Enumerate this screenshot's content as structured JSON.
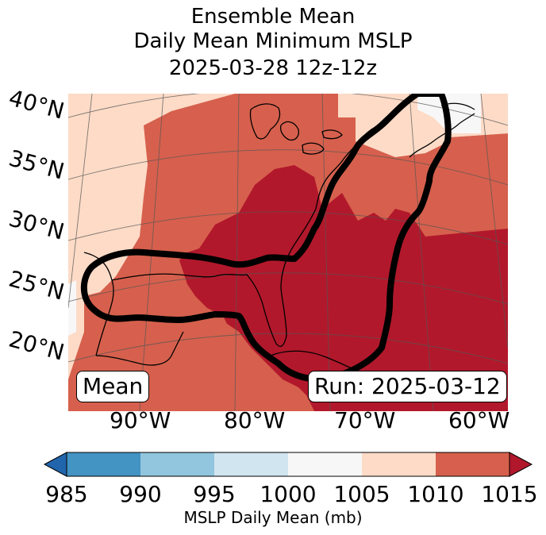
{
  "title": {
    "line1": "Ensemble Mean",
    "line2": "Daily Mean Minimum MSLP",
    "line3": "2025-03-28 12z-12z"
  },
  "map": {
    "lat_labels": [
      "40°N",
      "35°N",
      "30°N",
      "25°N",
      "20°N"
    ],
    "lon_labels": [
      "90°W",
      "80°W",
      "70°W",
      "60°W"
    ],
    "left_box": "Mean",
    "right_box": "Run: 2025-03-12",
    "fill_colors": {
      "lt_1000": "#f5f5f5",
      "r1005_1010": "#fddbc7",
      "r1010_1015": "#d6604d",
      "gt_1015": "#b2182b"
    },
    "contour_color": "#000000"
  },
  "colorbar": {
    "ticks": [
      "985",
      "990",
      "995",
      "1000",
      "1005",
      "1010",
      "1015"
    ],
    "colors": [
      "#2166ac",
      "#4393c3",
      "#92c5de",
      "#d1e5f0",
      "#f7f7f7",
      "#fddbc7",
      "#d6604d",
      "#b2182b"
    ],
    "label": "MSLP Daily Mean (mb)"
  }
}
